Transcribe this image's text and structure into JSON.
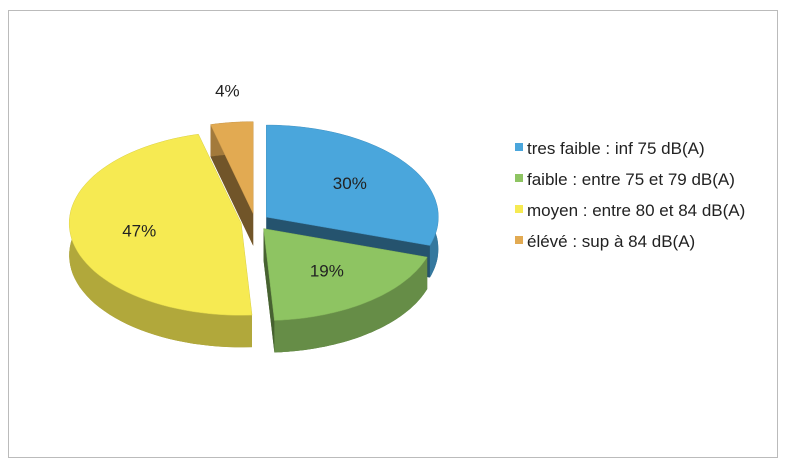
{
  "chart_data": {
    "type": "pie",
    "categories": [
      "tres faible : inf 75 dB(A)",
      "faible : entre 75 et 79 dB(A)",
      "moyen : entre 80 et 84 dB(A)",
      "élévé : sup à 84 dB(A)"
    ],
    "values": [
      30,
      19,
      47,
      4
    ],
    "value_labels": [
      "30%",
      "19%",
      "47%",
      "4%"
    ],
    "colors": [
      "#4aa6dc",
      "#8ec462",
      "#f6ea52",
      "#e2aa52"
    ],
    "legend": "right"
  }
}
